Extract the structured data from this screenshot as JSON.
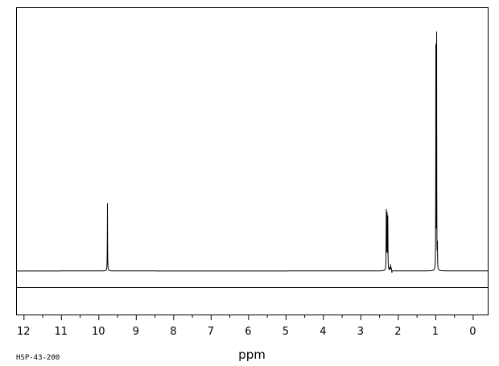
{
  "chart_data": {
    "type": "line",
    "title": "",
    "xlabel": "ppm",
    "ylabel": "",
    "xlim": [
      12.2,
      -0.4
    ],
    "x_reversed": true,
    "ylim": [
      0,
      1
    ],
    "baseline": 0.058,
    "grid": false,
    "legend": "none",
    "ticks": {
      "major": [
        12,
        11,
        10,
        9,
        8,
        7,
        6,
        5,
        4,
        3,
        2,
        1,
        0
      ],
      "labels": [
        "12",
        "11",
        "10",
        "9",
        "8",
        "7",
        "6",
        "5",
        "4",
        "3",
        "2",
        "1",
        "0"
      ],
      "minor_step": 0.5
    },
    "series": [
      {
        "peaks": [
          {
            "x": 9.76,
            "y": 0.3,
            "width": 0.004
          },
          {
            "x": 2.31,
            "y": 0.28,
            "width": 0.004
          },
          {
            "x": 2.29,
            "y": 0.3,
            "width": 0.004
          },
          {
            "x": 2.27,
            "y": 0.26,
            "width": 0.004
          },
          {
            "x": 2.215,
            "y": 0.07,
            "width": 0.004
          },
          {
            "x": 2.195,
            "y": 0.08,
            "width": 0.004
          },
          {
            "x": 2.18,
            "y": 0.07,
            "width": 0.004
          },
          {
            "x": 2.16,
            "y": 0.05,
            "width": 0.004
          },
          {
            "x": 0.985,
            "y": 0.94,
            "width": 0.003
          },
          {
            "x": 0.965,
            "y": 0.89,
            "width": 0.003
          },
          {
            "x": 0.945,
            "y": 0.15,
            "width": 0.004
          }
        ]
      }
    ],
    "footnote": "HSP-43-200",
    "line_color": "#000000"
  }
}
